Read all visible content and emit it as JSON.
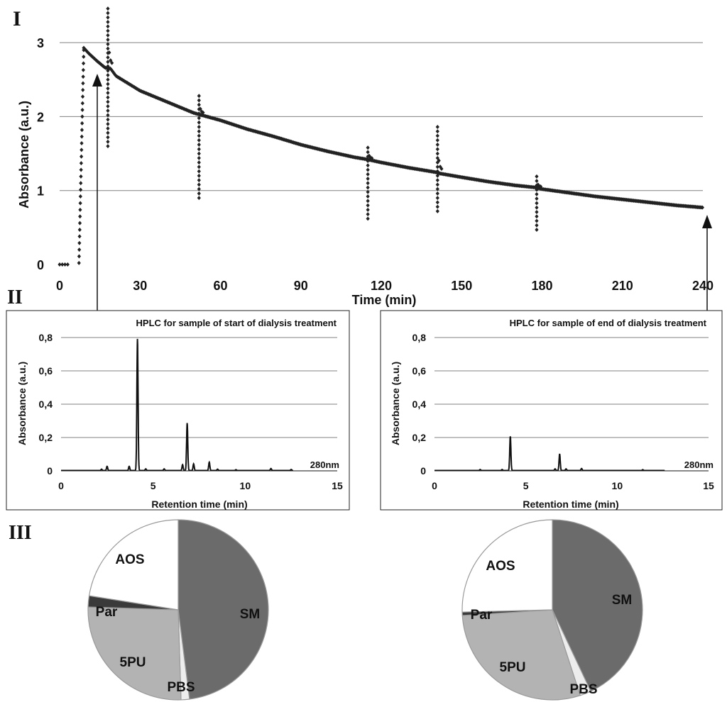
{
  "panels": {
    "p1": "I",
    "p2": "II",
    "p3": "III"
  },
  "colors": {
    "ink": "#222222",
    "grid": "#808080",
    "sm": "#6b6b6b",
    "pu": "#b3b3b3",
    "par": "#3a3a3a",
    "white": "#ffffff",
    "pbs": "#ededed"
  },
  "chart_data": [
    {
      "type": "scatter",
      "title": "",
      "xlabel": "Time (min)",
      "ylabel": "Absorbance (a.u.)",
      "xlim": [
        0,
        240
      ],
      "ylim": [
        0,
        3.5
      ],
      "xticks": [
        0,
        30,
        60,
        90,
        120,
        150,
        180,
        210,
        240
      ],
      "yticks": [
        0,
        1,
        2,
        3
      ],
      "grid": true,
      "series": [
        {
          "name": "absorbance",
          "baseline": [
            [
              0,
              0.0
            ],
            [
              1,
              0.0
            ],
            [
              2,
              0.0
            ],
            [
              5,
              0.02
            ],
            [
              6,
              0.05
            ],
            [
              7,
              0.5
            ],
            [
              8,
              2.5
            ],
            [
              9,
              2.93
            ],
            [
              11,
              2.85
            ],
            [
              14,
              2.75
            ],
            [
              17,
              2.66
            ],
            [
              19,
              2.65
            ],
            [
              21,
              2.55
            ],
            [
              30,
              2.35
            ],
            [
              40,
              2.2
            ],
            [
              50,
              2.05
            ],
            [
              52,
              2.03
            ],
            [
              60,
              1.95
            ],
            [
              70,
              1.83
            ],
            [
              80,
              1.73
            ],
            [
              90,
              1.62
            ],
            [
              100,
              1.53
            ],
            [
              110,
              1.45
            ],
            [
              115,
              1.42
            ],
            [
              120,
              1.38
            ],
            [
              130,
              1.31
            ],
            [
              140,
              1.25
            ],
            [
              142,
              1.23
            ],
            [
              150,
              1.18
            ],
            [
              160,
              1.12
            ],
            [
              170,
              1.07
            ],
            [
              178,
              1.04
            ],
            [
              180,
              1.02
            ],
            [
              190,
              0.97
            ],
            [
              200,
              0.92
            ],
            [
              210,
              0.88
            ],
            [
              220,
              0.84
            ],
            [
              230,
              0.8
            ],
            [
              240,
              0.77
            ]
          ],
          "spikes": [
            {
              "t": 18,
              "low": 1.6,
              "high": 3.5
            },
            {
              "t": 52,
              "low": 0.9,
              "high": 2.33
            },
            {
              "t": 115,
              "low": 0.62,
              "high": 1.62
            },
            {
              "t": 141,
              "low": 0.72,
              "high": 1.9
            },
            {
              "t": 178,
              "low": 0.47,
              "high": 1.2
            }
          ]
        }
      ]
    },
    {
      "type": "line",
      "title": "HPLC for sample of start of dialysis treatment",
      "xlabel": "Retention time (min)",
      "ylabel": "Absorbance (a.u.)",
      "annotation": "280nm",
      "xlim": [
        0,
        15
      ],
      "ylim": [
        0,
        0.8
      ],
      "xticks": [
        "0",
        "5",
        "10",
        "15"
      ],
      "yticks": [
        "0",
        "0,2",
        "0,4",
        "0,6",
        "0,8"
      ],
      "grid": true,
      "peaks": [
        [
          2.2,
          0.008
        ],
        [
          2.5,
          0.025
        ],
        [
          3.7,
          0.025
        ],
        [
          4.15,
          0.79
        ],
        [
          4.6,
          0.01
        ],
        [
          5.6,
          0.01
        ],
        [
          6.6,
          0.035
        ],
        [
          6.85,
          0.285
        ],
        [
          7.2,
          0.04
        ],
        [
          8.05,
          0.05
        ],
        [
          8.5,
          0.008
        ],
        [
          9.5,
          0.005
        ],
        [
          11.4,
          0.012
        ],
        [
          12.5,
          0.006
        ]
      ]
    },
    {
      "type": "line",
      "title": "HPLC for sample of end of dialysis treatment",
      "xlabel": "Retention time (min)",
      "ylabel": "Absorbance (a.u.)",
      "annotation": "280nm",
      "xlim": [
        0,
        15
      ],
      "ylim": [
        0,
        0.8
      ],
      "xticks": [
        "0",
        "5",
        "10",
        "15"
      ],
      "yticks": [
        "0",
        "0,2",
        "0,4",
        "0,6",
        "0,8"
      ],
      "grid": true,
      "peaks": [
        [
          2.5,
          0.006
        ],
        [
          3.7,
          0.006
        ],
        [
          4.15,
          0.205
        ],
        [
          6.6,
          0.01
        ],
        [
          6.85,
          0.1
        ],
        [
          7.2,
          0.01
        ],
        [
          8.05,
          0.012
        ],
        [
          11.4,
          0.005
        ]
      ]
    },
    {
      "type": "pie",
      "title": "",
      "start_angle_deg": -90,
      "slices": [
        {
          "label": "SM",
          "value": 48,
          "color": "#6b6b6b"
        },
        {
          "label": "PBS",
          "value": 1.5,
          "color": "#ededed"
        },
        {
          "label": "5PU",
          "value": 26,
          "color": "#b3b3b3"
        },
        {
          "label": "Par",
          "value": 2,
          "color": "#3a3a3a"
        },
        {
          "label": "AOS",
          "value": 22.5,
          "color": "#ffffff"
        }
      ]
    },
    {
      "type": "pie",
      "title": "",
      "start_angle_deg": -90,
      "slices": [
        {
          "label": "SM",
          "value": 43,
          "color": "#6b6b6b"
        },
        {
          "label": "PBS",
          "value": 2,
          "color": "#ededed"
        },
        {
          "label": "5PU",
          "value": 29,
          "color": "#b3b3b3"
        },
        {
          "label": "Par",
          "value": 0.6,
          "color": "#3a3a3a"
        },
        {
          "label": "AOS",
          "value": 25.4,
          "color": "#ffffff"
        }
      ]
    }
  ]
}
